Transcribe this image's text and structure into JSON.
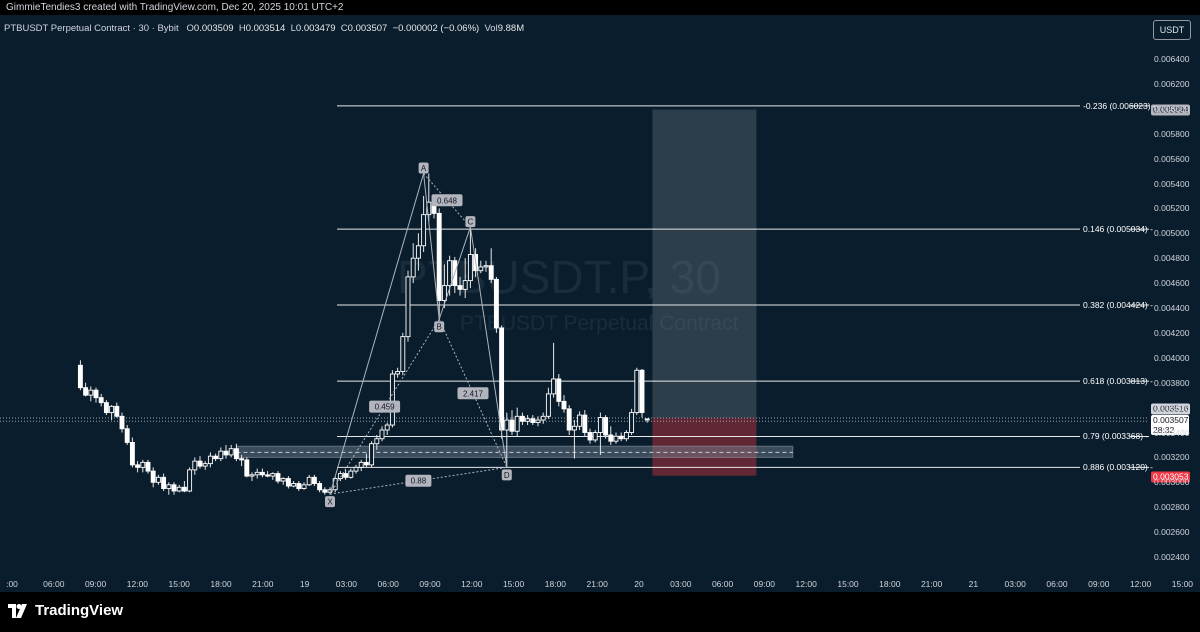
{
  "header": {
    "attribution": "GimmieTendies3 created with TradingView.com, Dec 20, 2025 10:01 UTC+2"
  },
  "legend": {
    "symbol": "PTBUSDT Perpetual Contract · 30 · Bybit",
    "o_label": "O",
    "o": "0.003509",
    "h_label": "H",
    "h": "0.003514",
    "l_label": "L",
    "l": "0.003479",
    "c_label": "C",
    "c": "0.003507",
    "change": "−0.000002 (−0.06%)",
    "vol_label": "Vol",
    "vol": "9.88M"
  },
  "currency_button": "USDT",
  "watermark": {
    "line1": "PTBUSDT.P, 30",
    "line2": "PTBUSDT Perpetual Contract"
  },
  "price_badges": {
    "target": "0.005994",
    "last_1": "0.003516",
    "last_2": "0.003507",
    "countdown": "28:32",
    "stop": "0.003053"
  },
  "fib_levels": [
    {
      "ratio": "-0.236",
      "price": 0.006023,
      "label": "-0.236 (0.006023)"
    },
    {
      "ratio": "0.146",
      "price": 0.005034,
      "label": "0.146 (0.005034)"
    },
    {
      "ratio": "0.382",
      "price": 0.004424,
      "label": "0.382 (0.004424)"
    },
    {
      "ratio": "0.618",
      "price": 0.003813,
      "label": "0.618 (0.003813)"
    },
    {
      "ratio": "0.79",
      "price": 0.003368,
      "label": "0.79 (0.003368)"
    },
    {
      "ratio": "0.886",
      "price": 0.00312,
      "label": "0.886 (0.003120)"
    }
  ],
  "pattern": {
    "points": [
      {
        "label": "X",
        "time": "Dec 19 03:00",
        "price": 0.002905
      },
      {
        "label": "A",
        "time": "Dec 19 12:00",
        "price": 0.00548
      },
      {
        "label": "B",
        "time": "Dec 19 13:30",
        "price": 0.00431
      },
      {
        "label": "C",
        "time": "Dec 19 16:30",
        "price": 0.00505
      },
      {
        "label": "D",
        "time": "Dec 19 20:00",
        "price": 0.00312
      }
    ],
    "ratios": [
      "0.648",
      "0.459",
      "2.417",
      "0.88"
    ]
  },
  "ticks": {
    "price": [
      "0.006400",
      "0.006200",
      "0.006000",
      "0.005800",
      "0.005600",
      "0.005400",
      "0.005200",
      "0.005000",
      "0.004800",
      "0.004600",
      "0.004400",
      "0.004200",
      "0.004000",
      "0.003800",
      "0.003600",
      "0.003400",
      "0.003200",
      "0.003000",
      "0.002800",
      "0.002600",
      "0.002400"
    ],
    "time": [
      ":00",
      "06:00",
      "09:00",
      "12:00",
      "15:00",
      "18:00",
      "21:00",
      "19",
      "03:00",
      "06:00",
      "09:00",
      "12:00",
      "15:00",
      "18:00",
      "21:00",
      "20",
      "03:00",
      "06:00",
      "09:00",
      "12:00",
      "15:00",
      "18:00",
      "21:00",
      "21",
      "03:00",
      "06:00",
      "09:00",
      "12:00",
      "15:00"
    ]
  },
  "footer": {
    "brand": "TradingView"
  },
  "chart_data": {
    "type": "candlestick",
    "symbol": "PTBUSDT",
    "interval": "30",
    "exchange": "Bybit",
    "ylim": [
      0.00226,
      0.00652
    ],
    "y_scale": "linear",
    "grid": false,
    "candles": [
      {
        "t": "Dec 18 03:00",
        "o": 0.00394,
        "h": 0.00398,
        "l": 0.00374,
        "c": 0.00376
      },
      {
        "t": "Dec 18 03:30",
        "o": 0.00376,
        "h": 0.0038,
        "l": 0.00369,
        "c": 0.0037
      },
      {
        "t": "Dec 18 04:00",
        "o": 0.0037,
        "h": 0.00377,
        "l": 0.00365,
        "c": 0.00374
      },
      {
        "t": "Dec 18 04:30",
        "o": 0.00374,
        "h": 0.00376,
        "l": 0.00364,
        "c": 0.00368
      },
      {
        "t": "Dec 18 05:00",
        "o": 0.00368,
        "h": 0.00371,
        "l": 0.00361,
        "c": 0.00364
      },
      {
        "t": "Dec 18 05:30",
        "o": 0.00364,
        "h": 0.00366,
        "l": 0.00354,
        "c": 0.00356
      },
      {
        "t": "Dec 18 06:00",
        "o": 0.00356,
        "h": 0.00362,
        "l": 0.0035,
        "c": 0.00361
      },
      {
        "t": "Dec 18 06:30",
        "o": 0.00361,
        "h": 0.00364,
        "l": 0.00352,
        "c": 0.00353
      },
      {
        "t": "Dec 18 07:00",
        "o": 0.00353,
        "h": 0.00356,
        "l": 0.0034,
        "c": 0.00343
      },
      {
        "t": "Dec 18 07:30",
        "o": 0.00343,
        "h": 0.00346,
        "l": 0.0033,
        "c": 0.00332
      },
      {
        "t": "Dec 18 08:00",
        "o": 0.00332,
        "h": 0.00336,
        "l": 0.00312,
        "c": 0.00314
      },
      {
        "t": "Dec 18 08:30",
        "o": 0.00314,
        "h": 0.00317,
        "l": 0.00308,
        "c": 0.00312
      },
      {
        "t": "Dec 18 09:00",
        "o": 0.00312,
        "h": 0.00318,
        "l": 0.00308,
        "c": 0.00316
      },
      {
        "t": "Dec 18 09:30",
        "o": 0.00316,
        "h": 0.00318,
        "l": 0.00307,
        "c": 0.00309
      },
      {
        "t": "Dec 18 10:00",
        "o": 0.00309,
        "h": 0.00312,
        "l": 0.00296,
        "c": 0.003
      },
      {
        "t": "Dec 18 10:30",
        "o": 0.003,
        "h": 0.00306,
        "l": 0.00298,
        "c": 0.00304
      },
      {
        "t": "Dec 18 11:00",
        "o": 0.00304,
        "h": 0.00307,
        "l": 0.00293,
        "c": 0.00295
      },
      {
        "t": "Dec 18 11:30",
        "o": 0.00295,
        "h": 0.003,
        "l": 0.0029,
        "c": 0.00298
      },
      {
        "t": "Dec 18 12:00",
        "o": 0.00298,
        "h": 0.003,
        "l": 0.0029,
        "c": 0.00293
      },
      {
        "t": "Dec 18 12:30",
        "o": 0.00293,
        "h": 0.00298,
        "l": 0.00292,
        "c": 0.00296
      },
      {
        "t": "Dec 18 13:00",
        "o": 0.00296,
        "h": 0.00301,
        "l": 0.00292,
        "c": 0.00293
      },
      {
        "t": "Dec 18 13:30",
        "o": 0.00293,
        "h": 0.00312,
        "l": 0.00292,
        "c": 0.0031
      },
      {
        "t": "Dec 18 14:00",
        "o": 0.0031,
        "h": 0.0032,
        "l": 0.00306,
        "c": 0.00317
      },
      {
        "t": "Dec 18 14:30",
        "o": 0.00317,
        "h": 0.00321,
        "l": 0.00311,
        "c": 0.00313
      },
      {
        "t": "Dec 18 15:00",
        "o": 0.00313,
        "h": 0.00317,
        "l": 0.0031,
        "c": 0.00315
      },
      {
        "t": "Dec 18 15:30",
        "o": 0.00315,
        "h": 0.00324,
        "l": 0.00312,
        "c": 0.00321
      },
      {
        "t": "Dec 18 16:00",
        "o": 0.00321,
        "h": 0.00323,
        "l": 0.00317,
        "c": 0.00319
      },
      {
        "t": "Dec 18 16:30",
        "o": 0.00319,
        "h": 0.00328,
        "l": 0.00317,
        "c": 0.00325
      },
      {
        "t": "Dec 18 17:00",
        "o": 0.00325,
        "h": 0.0033,
        "l": 0.00319,
        "c": 0.00322
      },
      {
        "t": "Dec 18 17:30",
        "o": 0.00322,
        "h": 0.0033,
        "l": 0.0032,
        "c": 0.00327
      },
      {
        "t": "Dec 18 18:00",
        "o": 0.00327,
        "h": 0.00331,
        "l": 0.00317,
        "c": 0.00319
      },
      {
        "t": "Dec 18 18:30",
        "o": 0.00319,
        "h": 0.00322,
        "l": 0.00313,
        "c": 0.00318
      },
      {
        "t": "Dec 18 19:00",
        "o": 0.00318,
        "h": 0.0032,
        "l": 0.00304,
        "c": 0.00305
      },
      {
        "t": "Dec 18 19:30",
        "o": 0.00305,
        "h": 0.00308,
        "l": 0.00301,
        "c": 0.00306
      },
      {
        "t": "Dec 18 20:00",
        "o": 0.00306,
        "h": 0.00311,
        "l": 0.00303,
        "c": 0.00308
      },
      {
        "t": "Dec 18 20:30",
        "o": 0.00308,
        "h": 0.00311,
        "l": 0.00304,
        "c": 0.00306
      },
      {
        "t": "Dec 18 21:00",
        "o": 0.00306,
        "h": 0.00309,
        "l": 0.00304,
        "c": 0.00305
      },
      {
        "t": "Dec 18 21:30",
        "o": 0.00305,
        "h": 0.00308,
        "l": 0.00302,
        "c": 0.00307
      },
      {
        "t": "Dec 18 22:00",
        "o": 0.00307,
        "h": 0.00309,
        "l": 0.00299,
        "c": 0.00301
      },
      {
        "t": "Dec 18 22:30",
        "o": 0.00301,
        "h": 0.00304,
        "l": 0.00298,
        "c": 0.00303
      },
      {
        "t": "Dec 18 23:00",
        "o": 0.00303,
        "h": 0.00305,
        "l": 0.00295,
        "c": 0.00297
      },
      {
        "t": "Dec 18 23:30",
        "o": 0.00297,
        "h": 0.00301,
        "l": 0.00296,
        "c": 0.00299
      },
      {
        "t": "Dec 19 00:00",
        "o": 0.00299,
        "h": 0.00301,
        "l": 0.00293,
        "c": 0.00295
      },
      {
        "t": "Dec 19 00:30",
        "o": 0.00295,
        "h": 0.003,
        "l": 0.00294,
        "c": 0.00298
      },
      {
        "t": "Dec 19 01:00",
        "o": 0.00298,
        "h": 0.00306,
        "l": 0.00297,
        "c": 0.00304
      },
      {
        "t": "Dec 19 01:30",
        "o": 0.00304,
        "h": 0.00306,
        "l": 0.00297,
        "c": 0.00299
      },
      {
        "t": "Dec 19 02:00",
        "o": 0.00299,
        "h": 0.00301,
        "l": 0.00292,
        "c": 0.00294
      },
      {
        "t": "Dec 19 02:30",
        "o": 0.00294,
        "h": 0.00296,
        "l": 0.0029,
        "c": 0.00292
      },
      {
        "t": "Dec 19 03:00",
        "o": 0.00292,
        "h": 0.00296,
        "l": 0.0029,
        "c": 0.00294
      },
      {
        "t": "Dec 19 03:30",
        "o": 0.00294,
        "h": 0.00305,
        "l": 0.00292,
        "c": 0.00303
      },
      {
        "t": "Dec 19 04:00",
        "o": 0.00303,
        "h": 0.00309,
        "l": 0.00301,
        "c": 0.00307
      },
      {
        "t": "Dec 19 04:30",
        "o": 0.00307,
        "h": 0.0031,
        "l": 0.00302,
        "c": 0.00304
      },
      {
        "t": "Dec 19 05:00",
        "o": 0.00304,
        "h": 0.00311,
        "l": 0.00303,
        "c": 0.00309
      },
      {
        "t": "Dec 19 05:30",
        "o": 0.00309,
        "h": 0.00314,
        "l": 0.00307,
        "c": 0.00312
      },
      {
        "t": "Dec 19 06:00",
        "o": 0.00312,
        "h": 0.00318,
        "l": 0.00309,
        "c": 0.00316
      },
      {
        "t": "Dec 19 06:30",
        "o": 0.00316,
        "h": 0.00323,
        "l": 0.00312,
        "c": 0.00314
      },
      {
        "t": "Dec 19 07:00",
        "o": 0.00314,
        "h": 0.00333,
        "l": 0.00312,
        "c": 0.00331
      },
      {
        "t": "Dec 19 07:30",
        "o": 0.00331,
        "h": 0.00338,
        "l": 0.00326,
        "c": 0.00335
      },
      {
        "t": "Dec 19 08:00",
        "o": 0.00335,
        "h": 0.00345,
        "l": 0.00333,
        "c": 0.00342
      },
      {
        "t": "Dec 19 08:30",
        "o": 0.00342,
        "h": 0.00348,
        "l": 0.00338,
        "c": 0.00346
      },
      {
        "t": "Dec 19 09:00",
        "o": 0.00346,
        "h": 0.0039,
        "l": 0.00344,
        "c": 0.00387
      },
      {
        "t": "Dec 19 09:30",
        "o": 0.00387,
        "h": 0.00392,
        "l": 0.00384,
        "c": 0.00389
      },
      {
        "t": "Dec 19 10:00",
        "o": 0.00389,
        "h": 0.0042,
        "l": 0.00386,
        "c": 0.00417
      },
      {
        "t": "Dec 19 10:30",
        "o": 0.00417,
        "h": 0.0047,
        "l": 0.00413,
        "c": 0.00465
      },
      {
        "t": "Dec 19 11:00",
        "o": 0.00465,
        "h": 0.00492,
        "l": 0.0046,
        "c": 0.0048
      },
      {
        "t": "Dec 19 11:30",
        "o": 0.0048,
        "h": 0.005,
        "l": 0.0047,
        "c": 0.0049
      },
      {
        "t": "Dec 19 12:00",
        "o": 0.0049,
        "h": 0.0053,
        "l": 0.00485,
        "c": 0.00515
      },
      {
        "t": "Dec 19 12:30",
        "o": 0.00515,
        "h": 0.00548,
        "l": 0.0051,
        "c": 0.00525
      },
      {
        "t": "Dec 19 13:00",
        "o": 0.00525,
        "h": 0.00528,
        "l": 0.00512,
        "c": 0.00516
      },
      {
        "t": "Dec 19 13:30",
        "o": 0.00516,
        "h": 0.0052,
        "l": 0.00431,
        "c": 0.00446
      },
      {
        "t": "Dec 19 14:00",
        "o": 0.00446,
        "h": 0.00475,
        "l": 0.0044,
        "c": 0.00458
      },
      {
        "t": "Dec 19 14:30",
        "o": 0.00458,
        "h": 0.00482,
        "l": 0.0045,
        "c": 0.00478
      },
      {
        "t": "Dec 19 15:00",
        "o": 0.00478,
        "h": 0.00481,
        "l": 0.00452,
        "c": 0.00458
      },
      {
        "t": "Dec 19 15:30",
        "o": 0.00458,
        "h": 0.00465,
        "l": 0.0045,
        "c": 0.00455
      },
      {
        "t": "Dec 19 16:00",
        "o": 0.00455,
        "h": 0.0048,
        "l": 0.00448,
        "c": 0.00462
      },
      {
        "t": "Dec 19 16:30",
        "o": 0.00462,
        "h": 0.00505,
        "l": 0.00456,
        "c": 0.00483
      },
      {
        "t": "Dec 19 17:00",
        "o": 0.00483,
        "h": 0.00488,
        "l": 0.00465,
        "c": 0.0047
      },
      {
        "t": "Dec 19 17:30",
        "o": 0.0047,
        "h": 0.00478,
        "l": 0.00468,
        "c": 0.00473
      },
      {
        "t": "Dec 19 18:00",
        "o": 0.00473,
        "h": 0.00478,
        "l": 0.00469,
        "c": 0.00474
      },
      {
        "t": "Dec 19 18:30",
        "o": 0.00474,
        "h": 0.00488,
        "l": 0.0046,
        "c": 0.00463
      },
      {
        "t": "Dec 19 19:00",
        "o": 0.00463,
        "h": 0.00465,
        "l": 0.0042,
        "c": 0.00424
      },
      {
        "t": "Dec 19 19:30",
        "o": 0.00424,
        "h": 0.00426,
        "l": 0.00335,
        "c": 0.00342
      },
      {
        "t": "Dec 19 20:00",
        "o": 0.00342,
        "h": 0.00356,
        "l": 0.00312,
        "c": 0.0035
      },
      {
        "t": "Dec 19 20:30",
        "o": 0.0035,
        "h": 0.00358,
        "l": 0.00338,
        "c": 0.00341
      },
      {
        "t": "Dec 19 21:00",
        "o": 0.00341,
        "h": 0.0036,
        "l": 0.00337,
        "c": 0.00353
      },
      {
        "t": "Dec 19 21:30",
        "o": 0.00353,
        "h": 0.00356,
        "l": 0.00346,
        "c": 0.00349
      },
      {
        "t": "Dec 19 22:00",
        "o": 0.00349,
        "h": 0.00354,
        "l": 0.00346,
        "c": 0.00351
      },
      {
        "t": "Dec 19 22:30",
        "o": 0.00351,
        "h": 0.00354,
        "l": 0.00346,
        "c": 0.00348
      },
      {
        "t": "Dec 19 23:00",
        "o": 0.00348,
        "h": 0.00353,
        "l": 0.00345,
        "c": 0.0035
      },
      {
        "t": "Dec 19 23:30",
        "o": 0.0035,
        "h": 0.00356,
        "l": 0.00347,
        "c": 0.00353
      },
      {
        "t": "Dec 20 00:00",
        "o": 0.00353,
        "h": 0.00376,
        "l": 0.00351,
        "c": 0.00371
      },
      {
        "t": "Dec 20 00:30",
        "o": 0.00371,
        "h": 0.00412,
        "l": 0.00368,
        "c": 0.00383
      },
      {
        "t": "Dec 20 01:00",
        "o": 0.00383,
        "h": 0.00387,
        "l": 0.00361,
        "c": 0.00365
      },
      {
        "t": "Dec 20 01:30",
        "o": 0.00365,
        "h": 0.0037,
        "l": 0.00356,
        "c": 0.00359
      },
      {
        "t": "Dec 20 02:00",
        "o": 0.00359,
        "h": 0.00362,
        "l": 0.00338,
        "c": 0.00342
      },
      {
        "t": "Dec 20 02:30",
        "o": 0.00342,
        "h": 0.0035,
        "l": 0.00319,
        "c": 0.00345
      },
      {
        "t": "Dec 20 03:00",
        "o": 0.00345,
        "h": 0.00357,
        "l": 0.00342,
        "c": 0.00354
      },
      {
        "t": "Dec 20 03:30",
        "o": 0.00354,
        "h": 0.00358,
        "l": 0.00337,
        "c": 0.0034
      },
      {
        "t": "Dec 20 04:00",
        "o": 0.0034,
        "h": 0.00343,
        "l": 0.00331,
        "c": 0.00334
      },
      {
        "t": "Dec 20 04:30",
        "o": 0.00334,
        "h": 0.00342,
        "l": 0.00332,
        "c": 0.0034
      },
      {
        "t": "Dec 20 05:00",
        "o": 0.0034,
        "h": 0.00356,
        "l": 0.00322,
        "c": 0.00352
      },
      {
        "t": "Dec 20 05:30",
        "o": 0.00352,
        "h": 0.00354,
        "l": 0.00335,
        "c": 0.00338
      },
      {
        "t": "Dec 20 06:00",
        "o": 0.00338,
        "h": 0.00345,
        "l": 0.0033,
        "c": 0.00333
      },
      {
        "t": "Dec 20 06:30",
        "o": 0.00333,
        "h": 0.0034,
        "l": 0.00331,
        "c": 0.00337
      },
      {
        "t": "Dec 20 07:00",
        "o": 0.00337,
        "h": 0.0034,
        "l": 0.00333,
        "c": 0.00335
      },
      {
        "t": "Dec 20 07:30",
        "o": 0.00335,
        "h": 0.00342,
        "l": 0.00333,
        "c": 0.0034
      },
      {
        "t": "Dec 20 08:00",
        "o": 0.0034,
        "h": 0.00359,
        "l": 0.00338,
        "c": 0.00356
      },
      {
        "t": "Dec 20 08:30",
        "o": 0.00356,
        "h": 0.00392,
        "l": 0.00354,
        "c": 0.0039
      },
      {
        "t": "Dec 20 09:00",
        "o": 0.0039,
        "h": 0.00391,
        "l": 0.00352,
        "c": 0.00356
      },
      {
        "t": "Dec 20 09:30",
        "o": 0.003509,
        "h": 0.003514,
        "l": 0.003479,
        "c": 0.003507
      }
    ],
    "position": {
      "type": "long",
      "entry": 0.003516,
      "target": 0.005994,
      "stop": 0.003053,
      "start": "Dec 20 10:00",
      "end": "Dec 20 20:00"
    },
    "zone": {
      "top": 0.00329,
      "bottom": 0.0032,
      "mid": 0.00324,
      "start": "Dec 18 18:00",
      "end": "Dec 20 23:30"
    }
  }
}
